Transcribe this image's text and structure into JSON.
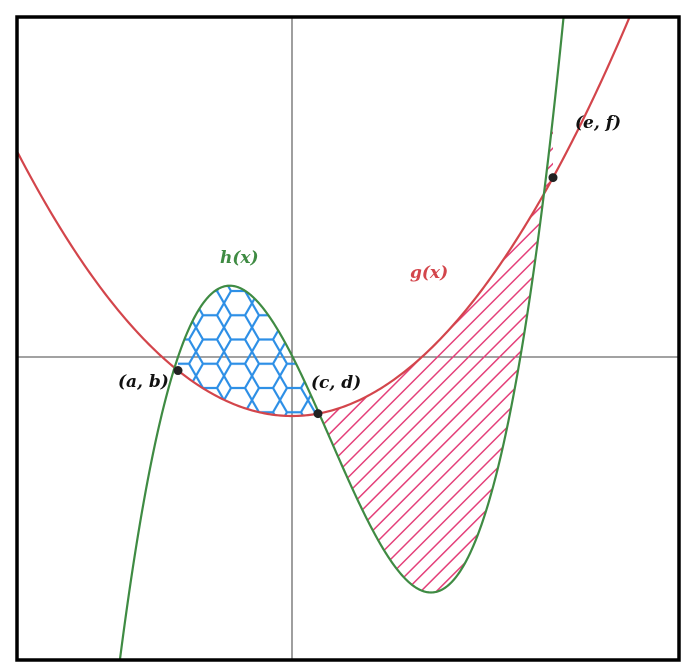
{
  "colors": {
    "g_curve": "#d3454b",
    "h_curve": "#3f8b43",
    "hex_fill": "#2d8fe6",
    "stripe_fill": "#e4407a",
    "axis": "#6b6b6b",
    "point": "#222222",
    "frame": "#000000"
  },
  "labels": {
    "h": "h(x)",
    "g": "g(x)",
    "p1": "(a, b)",
    "p2": "(c, d)",
    "p3": "(e, f)"
  }
}
